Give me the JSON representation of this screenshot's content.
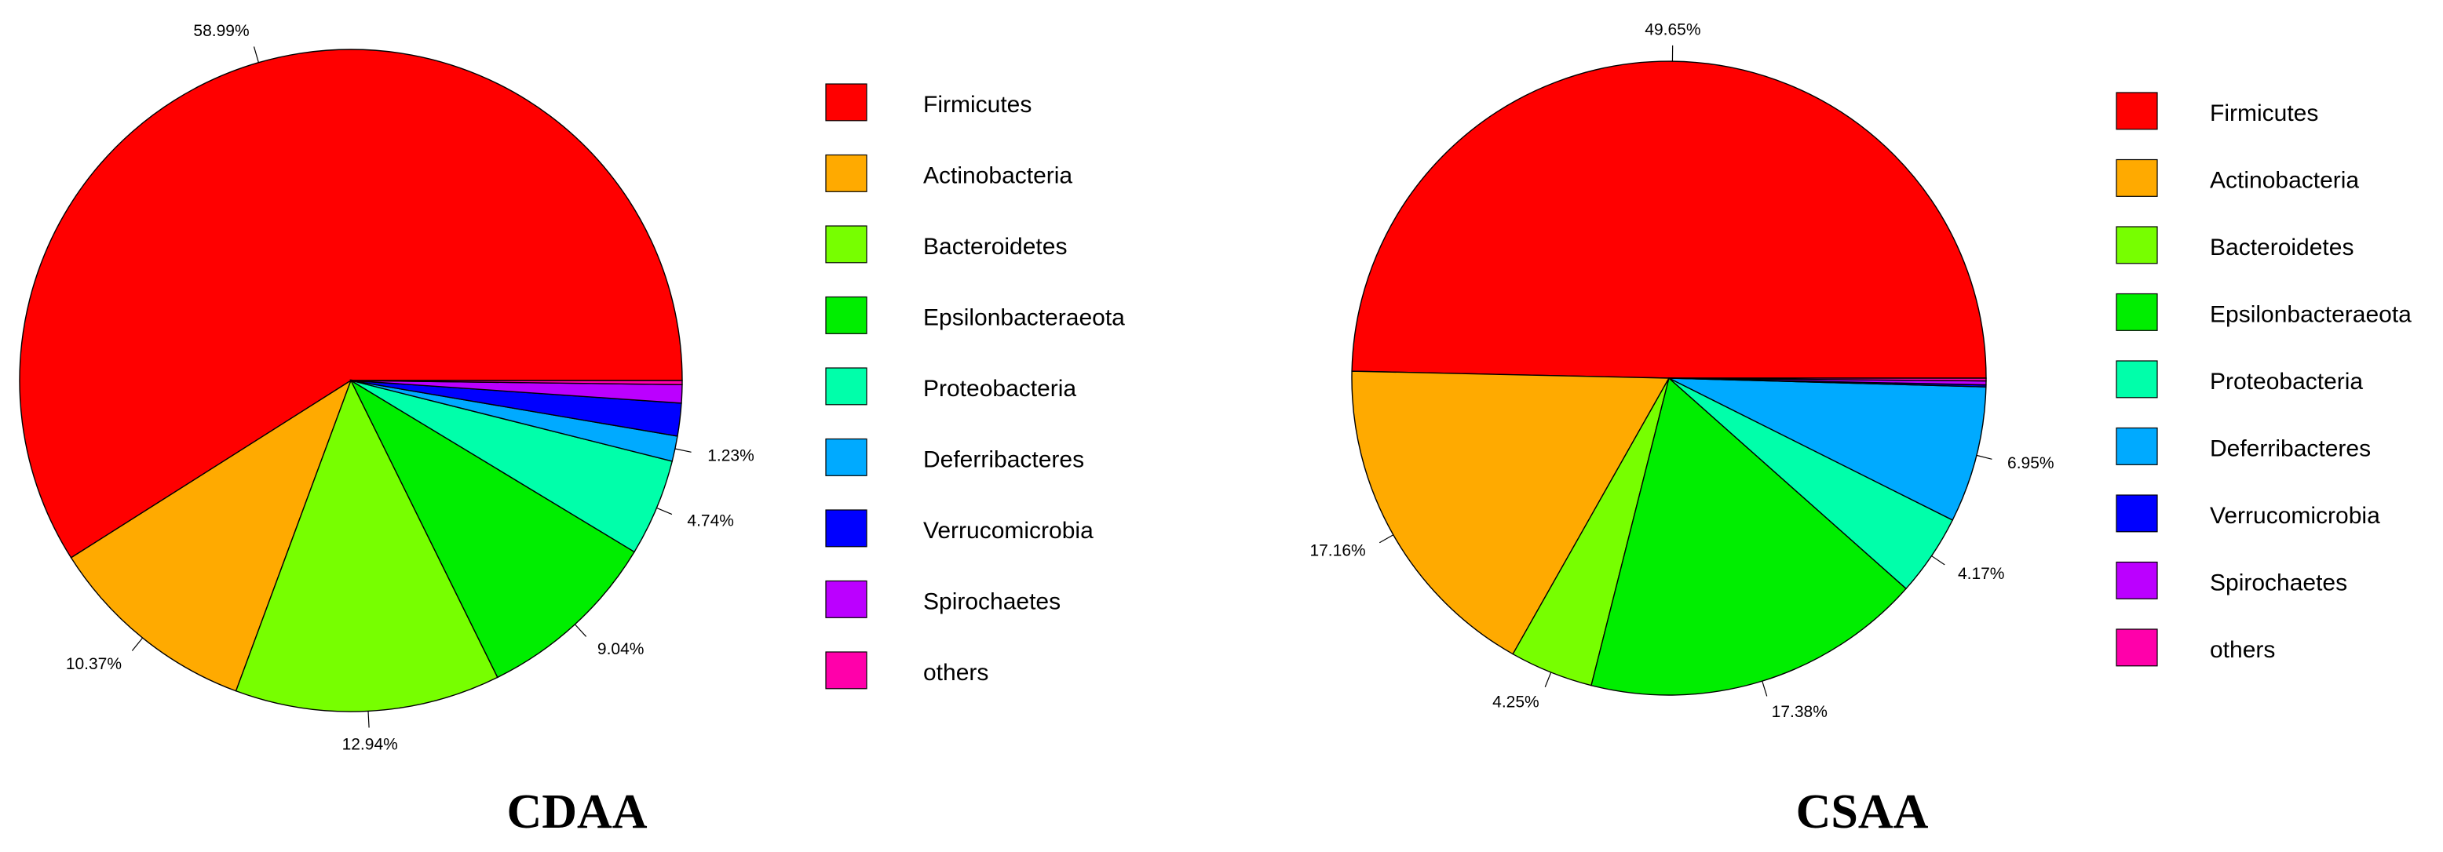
{
  "chart_data": [
    {
      "type": "pie",
      "title": "CDAA",
      "categories": [
        "Firmicutes",
        "Actinobacteria",
        "Bacteroidetes",
        "Epsilonbacteraeota",
        "Proteobacteria",
        "Deferribacteres",
        "Verrucomicrobia",
        "Spirochaetes",
        "others"
      ],
      "values": [
        58.99,
        10.37,
        12.94,
        9.04,
        4.74,
        1.23,
        1.6,
        0.89,
        0.2
      ],
      "data_labels": [
        "58.99%",
        "10.37%",
        "12.94%",
        "9.04%",
        "4.74%",
        "1.23%",
        "",
        "",
        ""
      ],
      "legend": "right"
    },
    {
      "type": "pie",
      "title": "CSAA",
      "categories": [
        "Firmicutes",
        "Actinobacteria",
        "Bacteroidetes",
        "Epsilonbacteraeota",
        "Proteobacteria",
        "Deferribacteres",
        "Verrucomicrobia",
        "Spirochaetes",
        "others"
      ],
      "values": [
        49.65,
        17.16,
        4.25,
        17.38,
        4.17,
        6.95,
        0.1,
        0.2,
        0.14
      ],
      "data_labels": [
        "49.65%",
        "17.16%",
        "4.25%",
        "17.38%",
        "4.17%",
        "6.95%",
        "",
        "",
        ""
      ],
      "legend": "right"
    }
  ],
  "colors": [
    "#ff0000",
    "#ffaa00",
    "#77ff00",
    "#00ee00",
    "#00ffaa",
    "#00aaff",
    "#0000ff",
    "#bb00ff",
    "#ff00aa"
  ]
}
